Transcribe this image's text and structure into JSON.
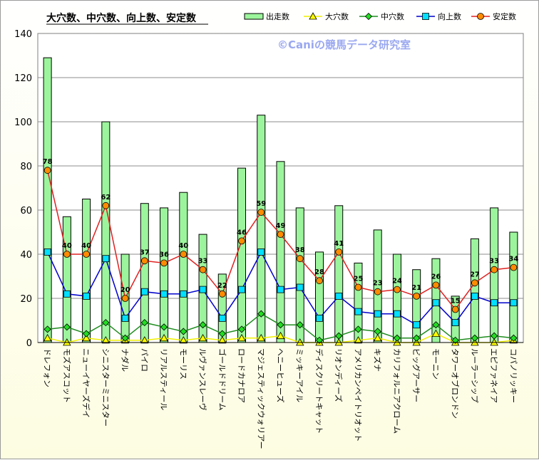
{
  "chart_data": {
    "type": "bar",
    "title": "大穴数、中穴数、向上数、安定数",
    "watermark": "©Caniの競馬データ研究室",
    "ylim": [
      0,
      140
    ],
    "yticks": [
      0,
      20,
      40,
      60,
      80,
      100,
      120,
      140
    ],
    "grid": "horizontal",
    "legend_position": "top-right",
    "categories": [
      "ドレフォン",
      "モズアスコット",
      "ニューイヤーズデイ",
      "シニスターミニスター",
      "ナダル",
      "パイロ",
      "リアルスティール",
      "モーリス",
      "ルヴァンスレーヴ",
      "ゴールドドリーム",
      "ロードカナロア",
      "マジェスティックウォリアー",
      "ヘニーヒューズ",
      "ミッキーアイル",
      "ディスクリートキャット",
      "リオンディーズ",
      "アメリカンペイトリオット",
      "キズナ",
      "カリフォルニアクローム",
      "ビッグアーサー",
      "モーニン",
      "タワーオブロンドン",
      "ルーラーシップ",
      "エピファネイア",
      "コパノリッキー"
    ],
    "series": [
      {
        "name": "出走数",
        "kind": "bar",
        "color": "#9cf59c",
        "values": [
          129,
          57,
          65,
          100,
          40,
          63,
          61,
          68,
          49,
          31,
          79,
          103,
          82,
          61,
          41,
          62,
          36,
          51,
          40,
          33,
          38,
          21,
          47,
          61,
          50
        ]
      },
      {
        "name": "大穴数",
        "kind": "line",
        "color": "#f0f000",
        "values": [
          2,
          0,
          2,
          1,
          1,
          1,
          2,
          1,
          2,
          1,
          2,
          2,
          3,
          0,
          0,
          0,
          1,
          2,
          0,
          0,
          4,
          0,
          0,
          0,
          1
        ]
      },
      {
        "name": "中穴数",
        "kind": "line",
        "color": "#1e8c1e",
        "values": [
          6,
          7,
          4,
          9,
          2,
          9,
          7,
          5,
          8,
          4,
          6,
          13,
          8,
          8,
          1,
          3,
          6,
          5,
          2,
          2,
          8,
          1,
          2,
          3,
          2
        ]
      },
      {
        "name": "向上数",
        "kind": "line",
        "color": "#0000cc",
        "values": [
          41,
          22,
          21,
          38,
          11,
          23,
          22,
          22,
          24,
          11,
          24,
          41,
          24,
          25,
          11,
          21,
          14,
          13,
          13,
          8,
          18,
          9,
          21,
          18,
          18
        ]
      },
      {
        "name": "安定数",
        "kind": "line",
        "color": "#e02020",
        "values": [
          78,
          40,
          40,
          62,
          20,
          37,
          36,
          40,
          33,
          22,
          46,
          59,
          49,
          38,
          28,
          41,
          25,
          23,
          24,
          21,
          26,
          15,
          27,
          33,
          34
        ]
      }
    ]
  }
}
